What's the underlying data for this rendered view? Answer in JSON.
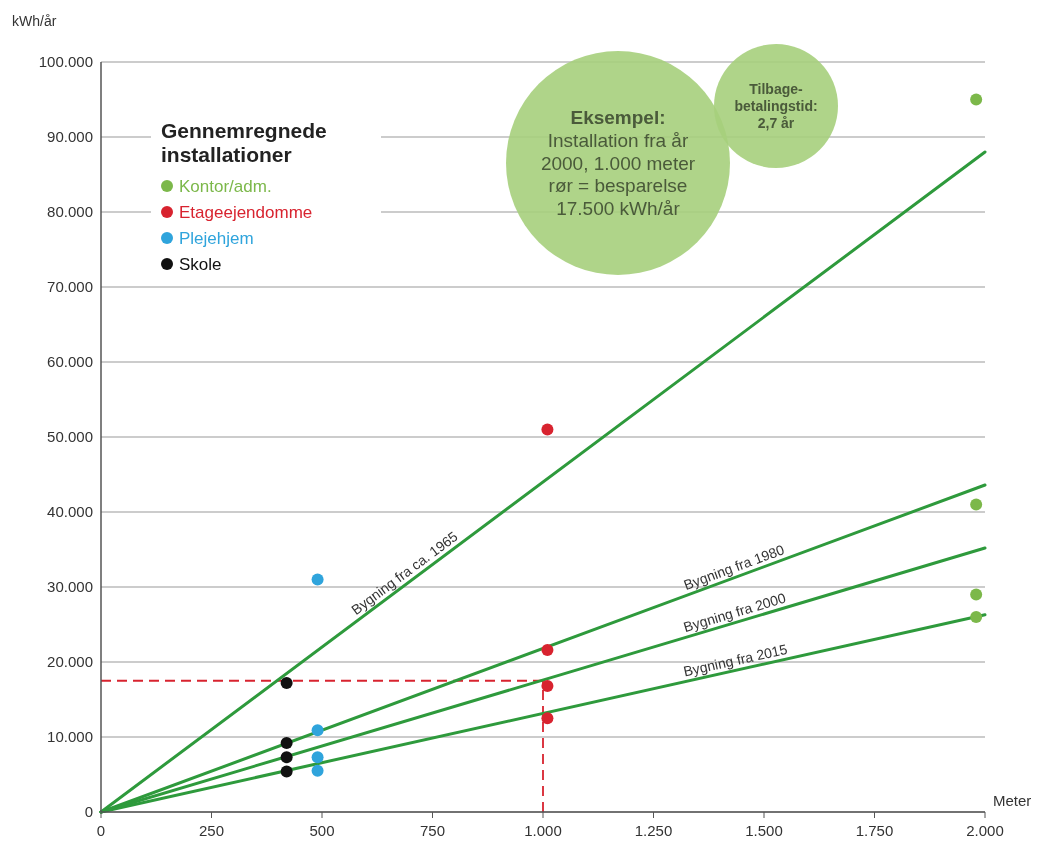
{
  "chart_data": {
    "type": "scatter",
    "xlabel": "Meter",
    "ylabel": "kWh/år",
    "legend_title": "Gennemregnede installationer",
    "legend": "top left",
    "grid": "y",
    "marker": "circle",
    "xlim": [
      0,
      2000
    ],
    "xticks": [
      0,
      250,
      500,
      750,
      {
        "value": 1000,
        "label": "1.000"
      },
      {
        "value": 1250,
        "label": "1.250"
      },
      {
        "value": 1500,
        "label": "1.500"
      },
      {
        "value": 1750,
        "label": "1.750"
      },
      {
        "value": 2000,
        "label": "2.000"
      }
    ],
    "ylim": [
      0,
      100000
    ],
    "yticks": [
      0,
      {
        "value": 10000,
        "label": "10.000"
      },
      {
        "value": 20000,
        "label": "20.000"
      },
      {
        "value": 30000,
        "label": "30.000"
      },
      {
        "value": 40000,
        "label": "40.000"
      },
      {
        "value": 50000,
        "label": "50.000"
      },
      {
        "value": 60000,
        "label": "60.000"
      },
      {
        "value": 70000,
        "label": "70.000"
      },
      {
        "value": 80000,
        "label": "80.000"
      },
      {
        "value": 90000,
        "label": "90.000"
      },
      {
        "value": 100000,
        "label": "100.000"
      }
    ],
    "series": [
      {
        "type": "line",
        "marker": "none",
        "color": "#2e9a3c",
        "x": [
          0,
          2000
        ],
        "values": [
          0,
          88000
        ]
      },
      {
        "type": "line",
        "marker": "none",
        "color": "#2e9a3c",
        "x": [
          0,
          2000
        ],
        "values": [
          0,
          43600
        ]
      },
      {
        "type": "line",
        "marker": "none",
        "color": "#2e9a3c",
        "x": [
          0,
          2000
        ],
        "values": [
          0,
          35200
        ]
      },
      {
        "type": "line",
        "marker": "none",
        "color": "#2e9a3c",
        "x": [
          0,
          2000
        ],
        "values": [
          0,
          26300
        ]
      },
      {
        "name": "Kontor/adm.",
        "color": "#7cb84a",
        "x": [
          1980,
          1980,
          1980,
          1980
        ],
        "values": [
          95000,
          41000,
          29000,
          26000
        ]
      },
      {
        "name": "Etageejendomme",
        "color": "#d8232f",
        "x": [
          1010,
          1010,
          1010,
          1010
        ],
        "values": [
          51000,
          21600,
          16800,
          12500
        ]
      },
      {
        "name": "Plejehjem",
        "color": "#2fa4dc",
        "x": [
          490,
          490,
          490,
          490
        ],
        "values": [
          31000,
          10900,
          7300,
          5500
        ]
      },
      {
        "name": "Skole",
        "color": "#111111",
        "x": [
          420,
          420,
          420,
          420
        ],
        "values": [
          17200,
          9200,
          7300,
          5400
        ]
      }
    ],
    "ref_lines": [
      {
        "axis": "y",
        "value": 17500,
        "color": "#d8232f",
        "line_style": "dashed"
      },
      {
        "axis": "x",
        "value": 1000,
        "color": "#d8232f",
        "line_style": "dashed"
      }
    ],
    "annotations": [
      "Bygning fra ca. 1965",
      "Bygning fra 1980",
      "Bygning fra 2000",
      "Bygning fra 2015",
      "Eksempel:\nInstallation fra år\n2000, 1.000 meter\nrør = besparelse\n17.500 kWh/år",
      "Tilbage-\nbetalingstid:\n2,7 år"
    ]
  }
}
